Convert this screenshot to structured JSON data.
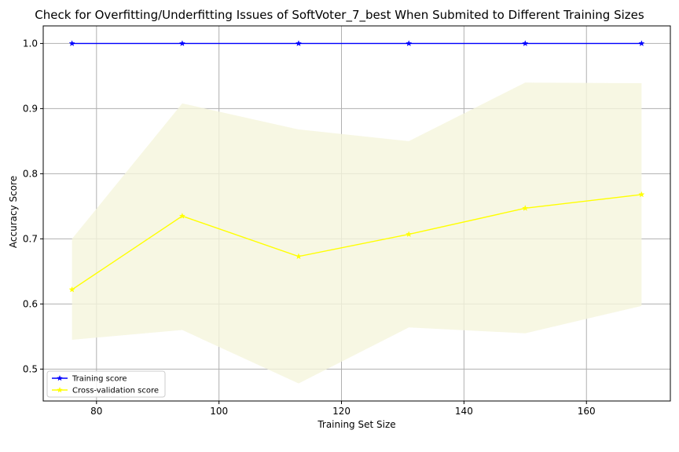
{
  "chart_data": {
    "type": "line",
    "title": "Check for Overfitting/Underfitting Issues of SoftVoter_7_best When Submited to Different Training Sizes",
    "xlabel": "Training Set Size",
    "ylabel": "Accuracy Score",
    "xlim": [
      71.3,
      173.7
    ],
    "ylim": [
      0.451,
      1.027
    ],
    "xticks": [
      80,
      100,
      120,
      140,
      160
    ],
    "yticks": [
      0.5,
      0.6,
      0.7,
      0.8,
      0.9,
      1.0
    ],
    "xtick_labels": [
      "80",
      "100",
      "120",
      "140",
      "160"
    ],
    "ytick_labels": [
      "0.5",
      "0.6",
      "0.7",
      "0.8",
      "0.9",
      "1.0"
    ],
    "grid": true,
    "legend_position": "lower-left",
    "x": [
      76,
      94,
      113,
      131,
      150,
      169
    ],
    "series": [
      {
        "name": "Training score",
        "values": [
          1.0,
          1.0,
          1.0,
          1.0,
          1.0,
          1.0
        ],
        "color": "#0000ff",
        "marker": "star"
      },
      {
        "name": "Cross-validation score",
        "values": [
          0.622,
          0.735,
          0.673,
          0.707,
          0.747,
          0.768
        ],
        "color": "#ffff00",
        "marker": "star",
        "band_lower": [
          0.545,
          0.56,
          0.478,
          0.564,
          0.555,
          0.597
        ],
        "band_upper": [
          0.7,
          0.908,
          0.868,
          0.85,
          0.94,
          0.939
        ],
        "band_color": "#f5f5dc"
      }
    ]
  }
}
